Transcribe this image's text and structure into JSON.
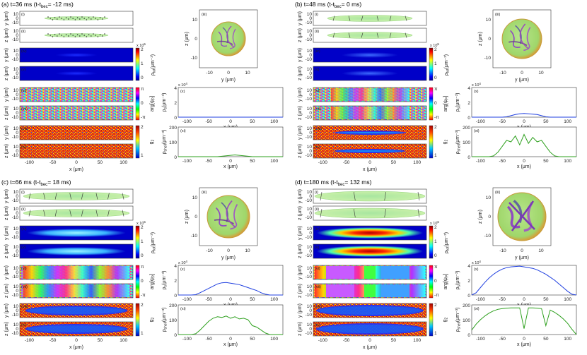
{
  "figure": {
    "panels": [
      {
        "id": "a",
        "title_prefix": "(a) t=36 ms (t-t",
        "title_sub": "bec",
        "title_suffix": "= -12 ms)",
        "stage": 0,
        "rho_values": [
          0,
          0,
          0,
          0,
          0,
          0,
          0,
          0,
          0,
          0,
          0,
          0,
          0,
          0,
          0,
          0,
          0,
          0,
          0,
          0,
          0,
          0,
          0,
          0,
          0
        ],
        "rho_shell_values": [
          0,
          0,
          0,
          0,
          0,
          0,
          0,
          0,
          0,
          0,
          3,
          6,
          9,
          12,
          9,
          6,
          3,
          0,
          0,
          0,
          0,
          0,
          0,
          0,
          0
        ]
      },
      {
        "id": "b",
        "title_prefix": "(b) t=48 ms (t-t",
        "title_sub": "bec",
        "title_suffix": "= 0 ms)",
        "stage": 1,
        "rho_values": [
          0,
          0,
          0,
          0,
          0,
          0,
          0,
          0,
          0.05,
          0.2,
          0.35,
          0.45,
          0.5,
          0.45,
          0.4,
          0.35,
          0.2,
          0.05,
          0,
          0,
          0,
          0,
          0,
          0,
          0
        ],
        "rho_shell_values": [
          0,
          0,
          0,
          0,
          0,
          5,
          30,
          70,
          110,
          100,
          140,
          80,
          150,
          90,
          130,
          100,
          110,
          70,
          30,
          5,
          0,
          0,
          0,
          0,
          0
        ]
      },
      {
        "id": "c",
        "title_prefix": "(c) t=66 ms (t-t",
        "title_sub": "bec",
        "title_suffix": "= 18 ms)",
        "stage": 2,
        "rho_values": [
          0,
          0,
          0,
          0,
          0.05,
          0.3,
          0.6,
          0.9,
          1.2,
          1.5,
          1.65,
          1.7,
          1.6,
          1.5,
          1.4,
          1.2,
          1.0,
          0.8,
          0.6,
          0.3,
          0.1,
          0,
          0,
          0,
          0
        ],
        "rho_shell_values": [
          0,
          0,
          0,
          0,
          5,
          30,
          60,
          90,
          110,
          120,
          115,
          125,
          110,
          120,
          105,
          110,
          100,
          60,
          50,
          30,
          10,
          0,
          0,
          0,
          0
        ]
      },
      {
        "id": "d",
        "title_prefix": "(d) t=180 ms (t-t",
        "title_sub": "bec",
        "title_suffix": "= 132 ms)",
        "stage": 3,
        "rho_values": [
          0,
          0.3,
          1.0,
          1.7,
          2.3,
          2.8,
          3.2,
          3.5,
          3.7,
          3.8,
          3.85,
          3.9,
          3.8,
          3.7,
          3.6,
          3.4,
          3.1,
          2.8,
          2.4,
          2.0,
          1.5,
          1.0,
          0.5,
          0.1,
          0
        ],
        "rho_shell_values": [
          30,
          70,
          100,
          125,
          145,
          160,
          170,
          175,
          178,
          180,
          180,
          180,
          40,
          180,
          180,
          178,
          175,
          60,
          165,
          150,
          130,
          105,
          75,
          35,
          0
        ]
      }
    ],
    "common": {
      "row_labels": [
        "(i)",
        "(ii)",
        "(iii)",
        "(iv)",
        "(v)",
        "(vi)",
        "(vii)",
        "(viii)",
        "(ix)",
        "(x)",
        "(xi)"
      ],
      "y_um_label": "y (μm)",
      "z_um_label": "z (μm)",
      "x_um_label": "x (μm)",
      "ycircle_label": "y (μm)",
      "zcircle_label": "z (μm)",
      "rho_tot_label": "ρ",
      "rho_tot_sub": "tot",
      "rho_tot_unit": "(μm⁻³)",
      "arg_label": "arg[ψ",
      "arg_sub": "P",
      "arg_suffix": "]",
      "g2_label": "g",
      "g2_sub": "2",
      "rho_s_label": "ρ",
      "rho_s_sub": "s",
      "rho_s_unit": "(μm⁻³)",
      "rho_shell_label": "ρ",
      "rho_shell_sub": "shell",
      "rho_shell_unit": "(μm⁻³)",
      "x_ticks": [
        "-100",
        "-50",
        "0",
        "50",
        "100"
      ],
      "strip_y_ticks": [
        "10",
        "0",
        "-10"
      ],
      "circle_ticks": [
        "-10",
        "0",
        "10"
      ],
      "circle_y_ticks": [
        "10",
        "0",
        "-10"
      ],
      "cb_dens_ticks": [
        "2",
        "1",
        "0"
      ],
      "cb_dens_exp": "x 10",
      "cb_dens_exp_sup": "5",
      "cb_phase_ticks": [
        "π",
        "0",
        "-π"
      ],
      "cb_g2_ticks": [
        "2",
        "1"
      ],
      "rho_plot_ticks": [
        "4",
        "2",
        "0"
      ],
      "rho_plot_exp": "x 10",
      "rho_plot_exp_sup": "4",
      "shell_plot_ticks": [
        "200",
        "100",
        "0"
      ]
    }
  },
  "chart_data": {
    "type": "line",
    "x": [
      -120,
      -110,
      -100,
      -90,
      -80,
      -70,
      -60,
      -50,
      -40,
      -30,
      -20,
      -10,
      0,
      10,
      20,
      30,
      40,
      50,
      60,
      70,
      80,
      90,
      100,
      110,
      120
    ],
    "xlabel": "x (μm)",
    "xlim": [
      -120,
      120
    ],
    "series": [
      {
        "panel": "a",
        "quantity": "rho_s",
        "ylim": [
          0,
          40000
        ],
        "values": [
          0,
          0,
          0,
          0,
          0,
          0,
          0,
          0,
          0,
          0,
          0,
          0,
          0,
          0,
          0,
          0,
          0,
          0,
          0,
          0,
          0,
          0,
          0,
          0,
          0
        ]
      },
      {
        "panel": "a",
        "quantity": "rho_shell",
        "ylim": [
          0,
          200
        ],
        "values": [
          0,
          0,
          0,
          0,
          0,
          0,
          0,
          0,
          0,
          0,
          3,
          6,
          9,
          12,
          9,
          6,
          3,
          0,
          0,
          0,
          0,
          0,
          0,
          0,
          0
        ]
      },
      {
        "panel": "b",
        "quantity": "rho_s",
        "ylim": [
          0,
          40000
        ],
        "values": [
          0,
          0,
          0,
          0,
          0,
          0,
          0,
          0,
          500,
          2000,
          3500,
          4500,
          5000,
          4500,
          4000,
          3500,
          2000,
          500,
          0,
          0,
          0,
          0,
          0,
          0,
          0
        ]
      },
      {
        "panel": "b",
        "quantity": "rho_shell",
        "ylim": [
          0,
          200
        ],
        "values": [
          0,
          0,
          0,
          0,
          0,
          5,
          30,
          70,
          110,
          100,
          140,
          80,
          150,
          90,
          130,
          100,
          110,
          70,
          30,
          5,
          0,
          0,
          0,
          0,
          0
        ]
      },
      {
        "panel": "c",
        "quantity": "rho_s",
        "ylim": [
          0,
          40000
        ],
        "values": [
          0,
          0,
          0,
          0,
          500,
          3000,
          6000,
          9000,
          12000,
          15000,
          16500,
          17000,
          16000,
          15000,
          14000,
          12000,
          10000,
          8000,
          6000,
          3000,
          1000,
          0,
          0,
          0,
          0
        ]
      },
      {
        "panel": "c",
        "quantity": "rho_shell",
        "ylim": [
          0,
          200
        ],
        "values": [
          0,
          0,
          0,
          0,
          5,
          30,
          60,
          90,
          110,
          120,
          115,
          125,
          110,
          120,
          105,
          110,
          100,
          60,
          50,
          30,
          10,
          0,
          0,
          0,
          0
        ]
      },
      {
        "panel": "d",
        "quantity": "rho_s",
        "ylim": [
          0,
          40000
        ],
        "values": [
          0,
          3000,
          10000,
          17000,
          23000,
          28000,
          32000,
          35000,
          37000,
          38000,
          38500,
          39000,
          38000,
          37000,
          36000,
          34000,
          31000,
          28000,
          24000,
          20000,
          15000,
          10000,
          5000,
          1000,
          0
        ]
      },
      {
        "panel": "d",
        "quantity": "rho_shell",
        "ylim": [
          0,
          200
        ],
        "values": [
          30,
          70,
          100,
          125,
          145,
          160,
          170,
          175,
          178,
          180,
          180,
          180,
          40,
          180,
          180,
          178,
          175,
          60,
          165,
          150,
          130,
          105,
          75,
          35,
          0
        ]
      }
    ]
  }
}
